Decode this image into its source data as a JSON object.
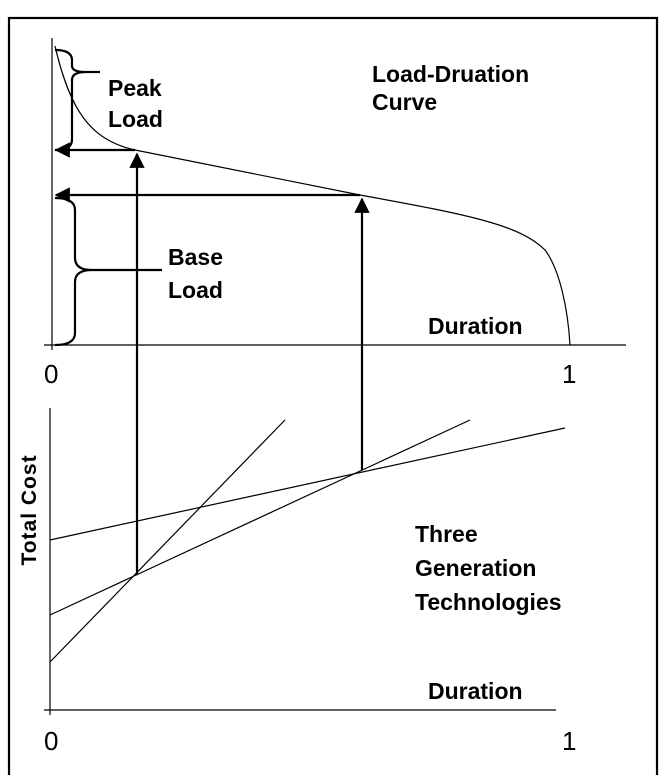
{
  "top_panel": {
    "title_lines": [
      "Load-Druation Curve"
    ],
    "title": [
      "Load-Druation",
      "Curve"
    ],
    "peak_label": [
      "Peak",
      "Load"
    ],
    "base_label": [
      "Base",
      "Load"
    ],
    "x_label": "Duration",
    "x_start": "0",
    "x_end": "1"
  },
  "bottom_panel": {
    "y_label": "Total Cost",
    "x_label": "Duration",
    "annotation": [
      "Three",
      "Generation",
      "Technologies"
    ],
    "x_start": "0",
    "x_end": "1"
  }
}
